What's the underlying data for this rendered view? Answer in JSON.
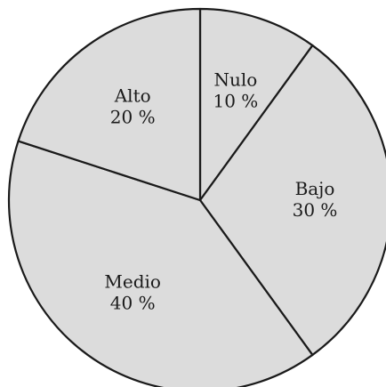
{
  "chart_data": {
    "type": "pie",
    "title": "",
    "start_angle_deg": 0,
    "direction": "clockwise",
    "slice_fill": "#dcdcdc",
    "outline_color": "#1a1a1a",
    "slices": [
      {
        "label": "Nulo",
        "value": 10,
        "value_label": "10 %"
      },
      {
        "label": "Bajo",
        "value": 30,
        "value_label": "30 %"
      },
      {
        "label": "Medio",
        "value": 40,
        "value_label": "40 %"
      },
      {
        "label": "Alto",
        "value": 20,
        "value_label": "20 %"
      }
    ]
  }
}
